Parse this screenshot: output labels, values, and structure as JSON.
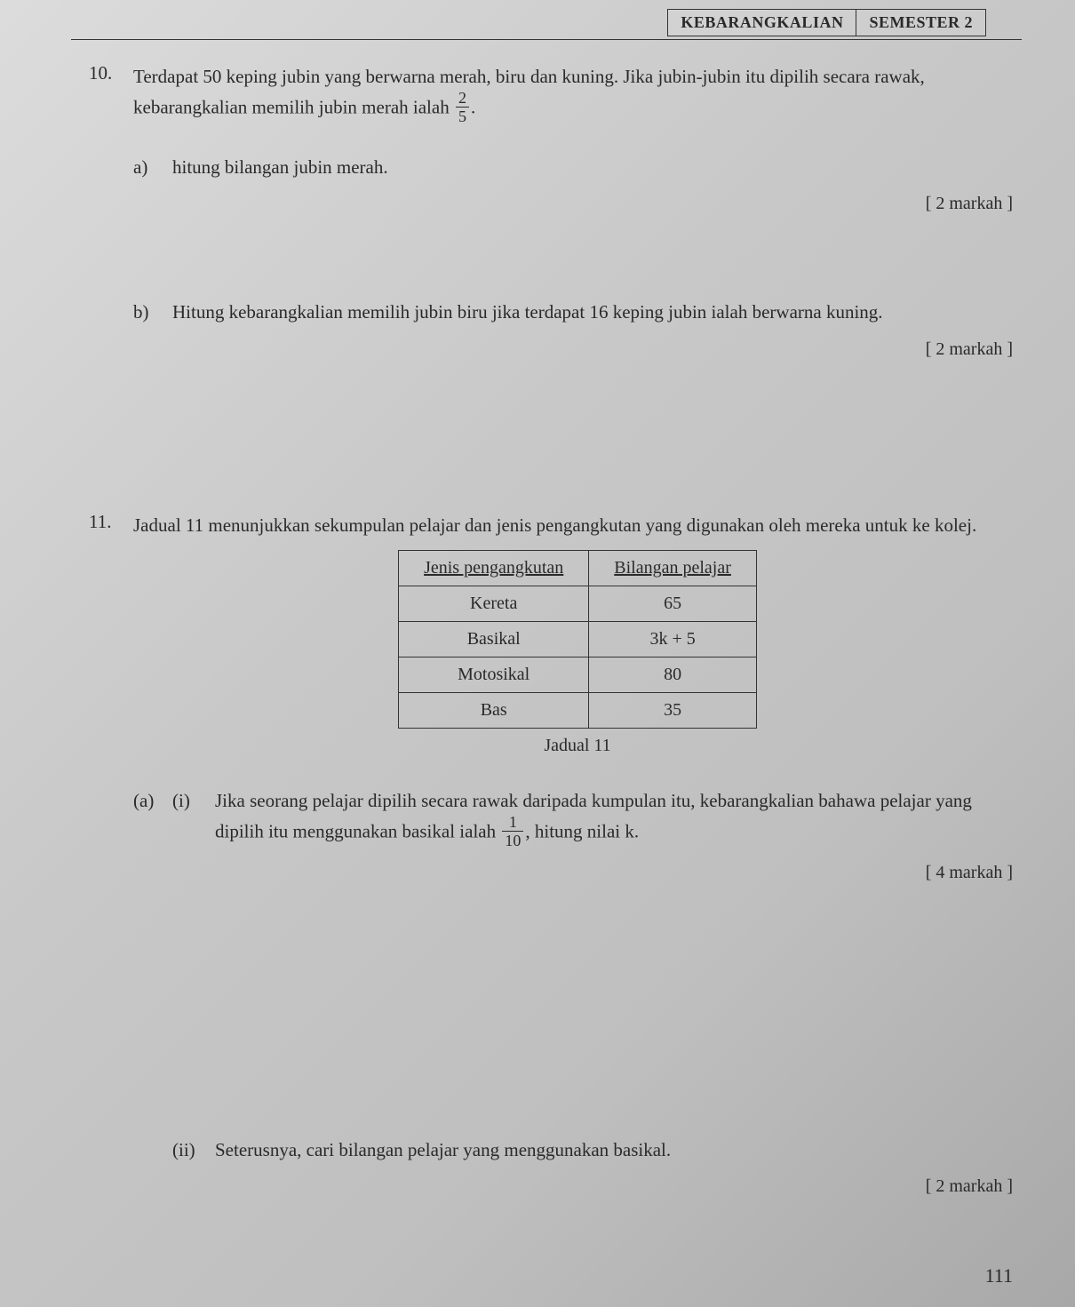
{
  "header": {
    "left_box": "KEBARANGKALIAN",
    "right_box": "SEMESTER 2"
  },
  "q10": {
    "number": "10.",
    "stem_a": "Terdapat 50 keping jubin yang berwarna merah, biru dan kuning.  Jika jubin-jubin itu dipilih secara rawak, kebarangkalian memilih jubin merah ialah ",
    "frac_num": "2",
    "frac_den": "5",
    "stem_b": ".",
    "a": {
      "label": "a)",
      "text": "hitung bilangan jubin merah.",
      "marks": "[ 2 markah ]"
    },
    "b": {
      "label": "b)",
      "text": "Hitung kebarangkalian memilih jubin biru jika terdapat 16 keping jubin ialah berwarna kuning.",
      "marks": "[ 2 markah ]"
    }
  },
  "q11": {
    "number": "11.",
    "stem": "Jadual 11 menunjukkan sekumpulan pelajar dan jenis pengangkutan yang digunakan oleh mereka untuk ke kolej.",
    "table": {
      "col1": "Jenis pengangkutan",
      "col2": "Bilangan pelajar",
      "rows": [
        [
          "Kereta",
          "65"
        ],
        [
          "Basikal",
          "3k + 5"
        ],
        [
          "Motosikal",
          "80"
        ],
        [
          "Bas",
          "35"
        ]
      ],
      "caption": "Jadual 11"
    },
    "a": {
      "label": "(a)",
      "i": {
        "label": "(i)",
        "text_a": "Jika seorang pelajar dipilih secara rawak daripada kumpulan itu, kebarangkalian bahawa pelajar yang dipilih itu menggunakan basikal ialah ",
        "frac_num": "1",
        "frac_den": "10",
        "text_b": ", hitung nilai k.",
        "marks": "[ 4 markah ]"
      },
      "ii": {
        "label": "(ii)",
        "text": "Seterusnya, cari bilangan pelajar yang menggunakan basikal.",
        "marks": "[ 2 markah ]"
      }
    }
  },
  "page_number": "111"
}
